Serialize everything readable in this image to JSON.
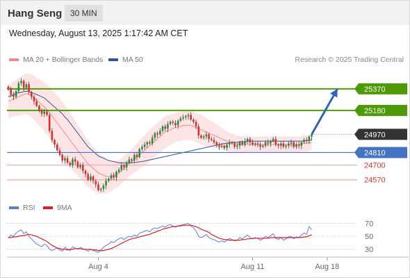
{
  "header": {
    "symbol": "Hang Seng",
    "interval": "30 MIN",
    "datetime": "Wednesday, August 13, 2025 1:17:42 AM CET",
    "credit": "Research © 2025 Trading Central"
  },
  "colors": {
    "ma20": "#f08a8a",
    "bollinger_fill": "#fde2e2",
    "ma50": "#2f5597",
    "resistance": "#4e9a06",
    "pivot": "#4472c4",
    "support": "#f4a3a3",
    "support_text": "#e0302f",
    "current": "#333333",
    "arrow": "#2f65b3",
    "candle_up": "#2a8c3a",
    "candle_down": "#d9302c",
    "rsi": "#5b7fd6",
    "rsi_ma": "#e41a1c"
  },
  "chart_data": [
    {
      "type": "candlestick",
      "legend": [
        {
          "name": "MA 20 + Bollinger Bands",
          "color": "#f08a8a"
        },
        {
          "name": "MA 50",
          "color": "#2f5597"
        }
      ],
      "x_ticks": [
        {
          "label": "Aug 4",
          "bar": 35
        },
        {
          "label": "Aug 11",
          "bar": 95
        },
        {
          "label": "Aug 18",
          "bar": 124
        }
      ],
      "ylim": [
        24440,
        25540
      ],
      "levels": [
        {
          "value": 25370,
          "label": "25370",
          "kind": "resistance"
        },
        {
          "value": 25180,
          "label": "25180",
          "kind": "resistance"
        },
        {
          "value": 24970,
          "label": "24970",
          "kind": "current"
        },
        {
          "value": 24810,
          "label": "24810",
          "kind": "pivot"
        },
        {
          "value": 24700,
          "label": "24700",
          "kind": "support"
        },
        {
          "value": 24570,
          "label": "24570",
          "kind": "support"
        }
      ],
      "forecast_arrow": {
        "from_bar": 118,
        "from": 24970,
        "to_bar": 128,
        "to": 25370
      },
      "close": [
        25370,
        25320,
        25300,
        25350,
        25420,
        25440,
        25380,
        25410,
        25340,
        25300,
        25260,
        25220,
        25180,
        25150,
        25170,
        25140,
        25000,
        24920,
        24880,
        24830,
        24790,
        24740,
        24760,
        24720,
        24700,
        24750,
        24730,
        24680,
        24700,
        24650,
        24620,
        24570,
        24600,
        24560,
        24530,
        24480,
        24490,
        24520,
        24560,
        24580,
        24610,
        24590,
        24640,
        24660,
        24700,
        24680,
        24720,
        24750,
        24740,
        24790,
        24770,
        24840,
        24860,
        24880,
        24900,
        24890,
        24940,
        24980,
        24970,
        25000,
        25040,
        25020,
        25060,
        25080,
        25070,
        25050,
        25090,
        25110,
        25120,
        25130,
        25140,
        25100,
        25080,
        25040,
        24960,
        24940,
        24950,
        24970,
        24930,
        24920,
        24900,
        24880,
        24860,
        24870,
        24850,
        24880,
        24900,
        24890,
        24860,
        24870,
        24900,
        24880,
        24910,
        24930,
        24900,
        24880,
        24890,
        24880,
        24860,
        24870,
        24900,
        24890,
        24910,
        24930,
        24880,
        24870,
        24890,
        24860,
        24870,
        24890,
        24900,
        24860,
        24880,
        24870,
        24900,
        24920,
        24910,
        24950,
        24970
      ],
      "ma20": [
        25260,
        25270,
        25280,
        25290,
        25300,
        25310,
        25320,
        25330,
        25320,
        25310,
        25290,
        25270,
        25250,
        25230,
        25210,
        25190,
        25160,
        25130,
        25100,
        25070,
        25040,
        25010,
        24980,
        24950,
        24920,
        24890,
        24860,
        24830,
        24800,
        24770,
        24740,
        24710,
        24690,
        24670,
        24650,
        24630,
        24620,
        24610,
        24600,
        24600,
        24600,
        24610,
        24620,
        24630,
        24650,
        24670,
        24690,
        24710,
        24730,
        24750,
        24770,
        24790,
        24810,
        24830,
        24850,
        24870,
        24890,
        24910,
        24930,
        24950,
        24970,
        24990,
        25000,
        25010,
        25020,
        25030,
        25040,
        25040,
        25050,
        25050,
        25050,
        25050,
        25040,
        25030,
        25020,
        25010,
        25000,
        24990,
        24980,
        24970,
        24960,
        24950,
        24940,
        24930,
        24920,
        24910,
        24900,
        24895,
        24890,
        24885,
        24880,
        24880,
        24880,
        24880,
        24880,
        24880,
        24880,
        24880,
        24880,
        24880,
        24880,
        24880,
        24880,
        24880,
        24880,
        24880,
        24880,
        24880,
        24880,
        24880,
        24880,
        24880,
        24880,
        24880,
        24885,
        24890,
        24890,
        24895,
        24900
      ],
      "ma50": [
        25300,
        25310,
        25320,
        25330,
        25335,
        25340,
        25345,
        25350,
        25345,
        25340,
        25330,
        25320,
        25310,
        25300,
        25290,
        25270,
        25250,
        25230,
        25210,
        25190,
        25170,
        25150,
        25120,
        25100,
        25070,
        25040,
        25010,
        24980,
        24950,
        24920,
        24890,
        24860,
        24840,
        24820,
        24800,
        24780,
        24770,
        24760,
        24750,
        24740,
        24735,
        24730,
        24725,
        24720,
        24720,
        24720,
        24720,
        24720,
        24720,
        24722,
        24725,
        24728,
        24730,
        24735,
        24740,
        24745,
        24750,
        24755,
        24760,
        24765,
        24770,
        24775,
        24780,
        24785,
        24790,
        24795,
        24800,
        24805,
        24810,
        24815,
        24820,
        24825,
        24830,
        24835,
        24840,
        24845,
        24850,
        24855,
        24860,
        24865,
        24870,
        24875,
        24880,
        24885,
        24890,
        24890,
        24895,
        24900,
        24900,
        24900,
        24905,
        24905,
        24905,
        24910,
        24910,
        24910,
        24910,
        24910,
        24910,
        24910,
        24910,
        24910,
        24910,
        24910,
        24910,
        24910,
        24910,
        24910,
        24910,
        24910,
        24910,
        24910,
        24910,
        24910,
        24910,
        24915,
        24915,
        24920,
        24920
      ],
      "band_width": [
        150,
        150,
        155,
        160,
        165,
        170,
        175,
        180,
        185,
        190,
        195,
        200,
        205,
        210,
        215,
        220,
        225,
        230,
        235,
        240,
        245,
        250,
        250,
        245,
        240,
        235,
        230,
        225,
        220,
        215,
        210,
        205,
        200,
        195,
        190,
        180,
        170,
        160,
        150,
        140,
        130,
        125,
        120,
        115,
        110,
        110,
        110,
        110,
        110,
        115,
        120,
        125,
        130,
        135,
        140,
        140,
        140,
        140,
        140,
        140,
        140,
        140,
        140,
        135,
        130,
        130,
        130,
        130,
        130,
        130,
        130,
        130,
        130,
        130,
        130,
        130,
        130,
        125,
        120,
        115,
        110,
        105,
        100,
        95,
        90,
        85,
        85,
        80,
        80,
        75,
        75,
        75,
        75,
        70,
        70,
        70,
        70,
        70,
        70,
        70,
        70,
        70,
        70,
        70,
        70,
        70,
        70,
        70,
        70,
        70,
        70,
        70,
        70,
        70,
        70,
        70,
        70,
        70,
        70
      ]
    },
    {
      "type": "line",
      "legend": [
        {
          "name": "RSI",
          "color": "#5b7fd6"
        },
        {
          "name": "9MA",
          "color": "#e41a1c"
        }
      ],
      "ylim": [
        20,
        80
      ],
      "y_ticks": [
        70,
        50,
        30
      ],
      "series": [
        {
          "name": "RSI",
          "values": [
            48,
            52,
            50,
            55,
            58,
            60,
            54,
            57,
            50,
            46,
            42,
            38,
            36,
            34,
            38,
            36,
            30,
            28,
            30,
            32,
            29,
            27,
            33,
            30,
            28,
            34,
            32,
            30,
            33,
            31,
            29,
            27,
            30,
            28,
            27,
            25,
            29,
            33,
            36,
            38,
            42,
            40,
            44,
            46,
            48,
            45,
            48,
            50,
            49,
            52,
            50,
            55,
            56,
            58,
            59,
            57,
            61,
            63,
            62,
            64,
            66,
            64,
            67,
            68,
            66,
            64,
            66,
            67,
            68,
            69,
            70,
            66,
            63,
            58,
            50,
            48,
            50,
            53,
            48,
            46,
            45,
            43,
            41,
            43,
            41,
            44,
            47,
            45,
            43,
            44,
            48,
            46,
            49,
            52,
            48,
            46,
            48,
            47,
            44,
            46,
            50,
            48,
            51,
            54,
            47,
            45,
            48,
            44,
            46,
            49,
            50,
            46,
            49,
            48,
            52,
            55,
            53,
            65,
            60
          ]
        },
        {
          "name": "9MA",
          "values": [
            48,
            48,
            49,
            49,
            50,
            51,
            51,
            52,
            53,
            52,
            51,
            50,
            48,
            46,
            44,
            42,
            39,
            36,
            34,
            32,
            31,
            30,
            30,
            29,
            30,
            30,
            31,
            31,
            31,
            30,
            30,
            30,
            30,
            29,
            29,
            28,
            28,
            28,
            29,
            30,
            31,
            33,
            35,
            37,
            39,
            41,
            43,
            45,
            46,
            47,
            48,
            49,
            50,
            51,
            52,
            53,
            55,
            56,
            58,
            59,
            61,
            62,
            63,
            64,
            65,
            65,
            66,
            66,
            67,
            67,
            67,
            67,
            66,
            65,
            63,
            61,
            59,
            58,
            56,
            53,
            51,
            49,
            47,
            46,
            45,
            45,
            44,
            44,
            44,
            44,
            44,
            45,
            45,
            46,
            46,
            47,
            47,
            47,
            47,
            47,
            47,
            47,
            48,
            48,
            48,
            48,
            48,
            48,
            48,
            48,
            48,
            48,
            48,
            48,
            48,
            49,
            49,
            51,
            52
          ]
        }
      ]
    }
  ]
}
